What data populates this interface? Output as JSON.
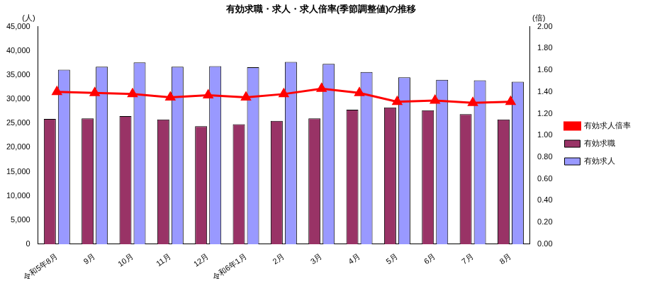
{
  "chart_data": {
    "type": "bar",
    "title": "有効求職・求人・求人倍率(季節調整値)の推移",
    "ylabel": "(人)",
    "y2label": "(倍)",
    "categories": [
      "令和5年8月",
      "9月",
      "10月",
      "11月",
      "12月",
      "令和6年1月",
      "2月",
      "3月",
      "4月",
      "5月",
      "6月",
      "7月",
      "8月"
    ],
    "series": [
      {
        "name": "有効求職",
        "type": "bar",
        "color": "#993366",
        "values": [
          25900,
          26000,
          26500,
          25800,
          24400,
          24800,
          25500,
          26000,
          27800,
          28300,
          27700,
          26900,
          25800
        ]
      },
      {
        "name": "有効求人",
        "type": "bar",
        "color": "#9999ff",
        "values": [
          36100,
          36700,
          37600,
          36700,
          36800,
          36600,
          37700,
          37300,
          35600,
          34500,
          34000,
          33900,
          33600
        ]
      },
      {
        "name": "有効求人倍率",
        "type": "line",
        "color": "#ff0000",
        "axis": "y2",
        "marker": "triangle",
        "line_style": "solid",
        "values": [
          1.4,
          1.39,
          1.38,
          1.35,
          1.37,
          1.35,
          1.38,
          1.43,
          1.39,
          1.31,
          1.32,
          1.3,
          1.31
        ]
      }
    ],
    "ylim": [
      0,
      45000
    ],
    "yticks": [
      0,
      {
        "value": 5000,
        "label": "5,000"
      },
      {
        "value": 10000,
        "label": "10,000"
      },
      {
        "value": 15000,
        "label": "15,000"
      },
      {
        "value": 20000,
        "label": "20,000"
      },
      {
        "value": 25000,
        "label": "25,000"
      },
      {
        "value": 30000,
        "label": "30,000"
      },
      {
        "value": 35000,
        "label": "35,000"
      },
      {
        "value": 40000,
        "label": "40,000"
      },
      {
        "value": 45000,
        "label": "45,000"
      }
    ],
    "y2lim": [
      0,
      2
    ],
    "y2ticks": [
      {
        "value": 0,
        "label": "0.00"
      },
      {
        "value": 0.2,
        "label": "0.20"
      },
      {
        "value": 0.4,
        "label": "0.40"
      },
      {
        "value": 0.6,
        "label": "0.60"
      },
      {
        "value": 0.8,
        "label": "0.80"
      },
      {
        "value": 1,
        "label": "1.00"
      },
      {
        "value": 1.2,
        "label": "1.20"
      },
      {
        "value": 1.4,
        "label": "1.40"
      },
      {
        "value": 1.6,
        "label": "1.60"
      },
      {
        "value": 1.8,
        "label": "1.80"
      },
      {
        "value": 2,
        "label": "2.00"
      }
    ],
    "grid": false,
    "legend": "right"
  }
}
